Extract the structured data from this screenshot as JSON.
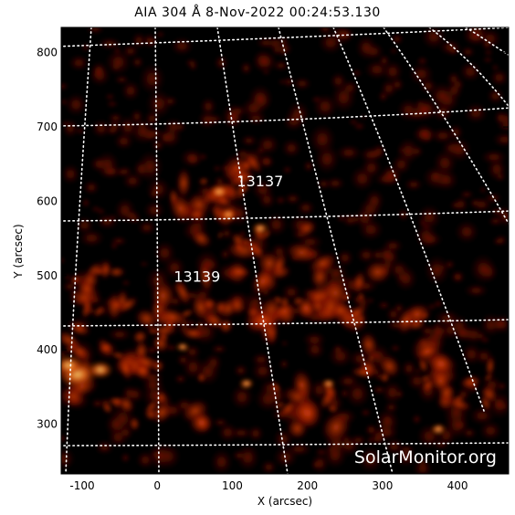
{
  "title": "AIA 304 Å   8-Nov-2022  00:24:53.130",
  "x_axis": {
    "label": "X (arcsec)",
    "ticks": [
      {
        "value": -100,
        "label": "-100"
      },
      {
        "value": 0,
        "label": "0"
      },
      {
        "value": 100,
        "label": "100"
      },
      {
        "value": 200,
        "label": "200"
      },
      {
        "value": 300,
        "label": "300"
      },
      {
        "value": 400,
        "label": "400"
      }
    ],
    "range": [
      -128,
      468
    ]
  },
  "y_axis": {
    "label": "Y (arcsec)",
    "ticks": [
      {
        "value": 300,
        "label": "300"
      },
      {
        "value": 400,
        "label": "400"
      },
      {
        "value": 500,
        "label": "500"
      },
      {
        "value": 600,
        "label": "600"
      },
      {
        "value": 700,
        "label": "700"
      },
      {
        "value": 800,
        "label": "800"
      }
    ],
    "range": [
      233,
      834
    ]
  },
  "regions": [
    {
      "label": "13137",
      "x": 137,
      "y": 620
    },
    {
      "label": "13139",
      "x": 53,
      "y": 492
    }
  ],
  "watermark": "SolarMonitor.org",
  "colors": {
    "background": "#000000",
    "plasma_dim": "#3a0500",
    "plasma_mid": "#a81a00",
    "plasma_bright": "#e85a10",
    "plasma_peak": "#ffc060",
    "grid": "#ffffff"
  }
}
